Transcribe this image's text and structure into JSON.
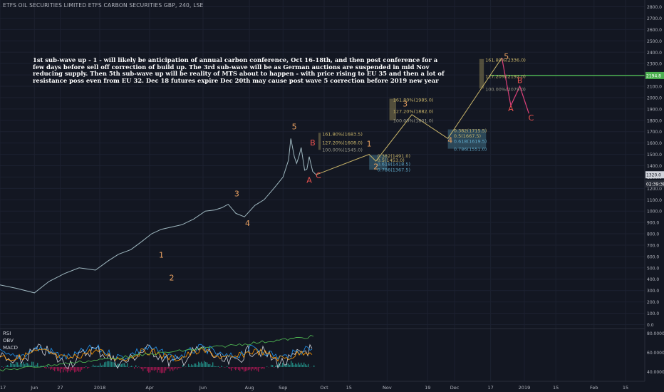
{
  "header": {
    "title": "ETFS OIL SECURITIES LIMITED ETFS CARBON SECURITIES GBP, 240, LSE"
  },
  "annotation": {
    "lines": [
      "1st sub-wave up - 1 -  will likely be anticipation of annual carbon conference, Oct 16-18th, and then post conference for a",
      "few days before sell off correction of build up.  The 3rd sub-wave will be as German auctions are suspended in mid Nov",
      "reducing supply. Then 5th sub-wave up will be reality of MTS about to happen - with price rising to EU 35 and then a lot of",
      "resistance poss even from EU 32. Dec 18 futures expire Dec 20th may cause post wave 5 correction before 2019 new year"
    ]
  },
  "indicators": {
    "rsi": "RSI",
    "obv": "OBV",
    "macd": "MACD"
  },
  "colors": {
    "background": "#131722",
    "price_line": "#9fb8c0",
    "wave_label": "#e8a060",
    "correction_label": "#ef5350",
    "green": "#4caf50",
    "fib_text": "#c9b56a",
    "fib_blue": "#5fa8c8"
  },
  "chart_data": {
    "type": "line",
    "series": [
      {
        "x": [
          "2017-05-01",
          "2017-05-20",
          "2017-06-10",
          "2017-06-27",
          "2017-07-15",
          "2017-08-01",
          "2017-08-20",
          "2017-09-10",
          "2017-10-01",
          "2017-10-25",
          "2017-11-15",
          "2017-12-05",
          "2017-12-25",
          "2018-01-15",
          "2018-02-05",
          "2018-03-01",
          "2018-03-25",
          "2018-04-15",
          "2018-05-01",
          "2018-05-15",
          "2018-06-01",
          "2018-06-20",
          "2018-07-10",
          "2018-07-25",
          "2018-08-10",
          "2018-08-25",
          "2018-09-03",
          "2018-09-05",
          "2018-09-08",
          "2018-09-10",
          "2018-09-12",
          "2018-09-14",
          "2018-09-17",
          "2018-09-19",
          "2018-09-21",
          "2018-09-24",
          "2018-09-27"
        ],
        "values": [
          350,
          320,
          280,
          380,
          450,
          500,
          480,
          560,
          620,
          660,
          730,
          800,
          840,
          860,
          880,
          930,
          1000,
          1010,
          1030,
          1060,
          980,
          950,
          1050,
          1100,
          1200,
          1300,
          1450,
          1640,
          1480,
          1420,
          1480,
          1560,
          1360,
          1370,
          1480,
          1350,
          1320
        ]
      }
    ],
    "wave_labels": [
      {
        "label": "1",
        "x": "2017-12-25",
        "y": 590
      },
      {
        "label": "2",
        "x": "2018-01-15",
        "y": 390
      },
      {
        "label": "3",
        "x": "2018-06-03",
        "y": 1130
      },
      {
        "label": "4",
        "x": "2018-06-27",
        "y": 870
      },
      {
        "label": "5",
        "x": "2018-09-08",
        "y": 1720
      },
      {
        "label": "A",
        "x": "2018-09-21",
        "y": 1250
      },
      {
        "label": "B",
        "x": "2018-09-24",
        "y": 1580
      },
      {
        "label": "C",
        "x": "2018-09-29",
        "y": 1290
      },
      {
        "label": "1",
        "x": "2018-10-24",
        "y": 1570
      },
      {
        "label": "2",
        "x": "2018-10-27",
        "y": 1370
      },
      {
        "label": "3",
        "x": "2018-11-09",
        "y": 1920
      },
      {
        "label": "4",
        "x": "2018-11-29",
        "y": 1600
      },
      {
        "label": "5",
        "x": "2018-12-24",
        "y": 2340
      },
      {
        "label": "A",
        "x": "2018-12-26",
        "y": 1880
      },
      {
        "label": "B",
        "x": "2018-12-30",
        "y": 2130
      },
      {
        "label": "C",
        "x": "2019-01-04",
        "y": 1800
      }
    ],
    "fib_levels": [
      {
        "text": "161.80%(1683.5)",
        "x": "2018-10-01",
        "y": 1683.5,
        "style": "gold"
      },
      {
        "text": "127.20%(1608.0)",
        "x": "2018-10-01",
        "y": 1608,
        "style": "gold"
      },
      {
        "text": "100.00%(1545.0)",
        "x": "2018-10-01",
        "y": 1545,
        "style": "gray"
      },
      {
        "text": "0.382(1491.0)",
        "x": "2018-10-27",
        "y": 1491,
        "style": "gold"
      },
      {
        "text": "0.5(1453.0)",
        "x": "2018-10-27",
        "y": 1453,
        "style": "gold"
      },
      {
        "text": "0.618(1418.5)",
        "x": "2018-10-27",
        "y": 1418.5,
        "style": "blue"
      },
      {
        "text": "0.786(1367.5)",
        "x": "2018-10-27",
        "y": 1367.5,
        "style": "blue"
      },
      {
        "text": "161.80%(1985.0)",
        "x": "2018-11-03",
        "y": 1985,
        "style": "gold"
      },
      {
        "text": "127.20%(1882.0)",
        "x": "2018-11-03",
        "y": 1882,
        "style": "gold"
      },
      {
        "text": "100.00%(1801.0)",
        "x": "2018-11-03",
        "y": 1801,
        "style": "gray"
      },
      {
        "text": "0.382(1715.5)",
        "x": "2018-11-30",
        "y": 1715.5,
        "style": "gold"
      },
      {
        "text": "0.5(1667.5)",
        "x": "2018-11-30",
        "y": 1667.5,
        "style": "gold"
      },
      {
        "text": "0.618(1619.5)",
        "x": "2018-11-30",
        "y": 1619.5,
        "style": "blue"
      },
      {
        "text": "0.786(1551.0)",
        "x": "2018-11-30",
        "y": 1551,
        "style": "blue"
      },
      {
        "text": "161.80%(2336.0)",
        "x": "2018-12-14",
        "y": 2336,
        "style": "gold"
      },
      {
        "text": "127.20%(2192.0)",
        "x": "2018-12-14",
        "y": 2192,
        "style": "gold"
      },
      {
        "text": "100.00%(2079.0)",
        "x": "2018-12-14",
        "y": 2079,
        "style": "gray"
      }
    ],
    "y_ticks": [
      0,
      100,
      200,
      300,
      400,
      500,
      600,
      700,
      800,
      900,
      1000,
      1100,
      1200,
      1300,
      1400,
      1500,
      1600,
      1700,
      1800,
      1900,
      2000,
      2100,
      2200,
      2300,
      2400,
      2500,
      2600,
      2700,
      2800
    ],
    "y_tick_labels": [
      "0.0",
      "100.0",
      "200.0",
      "300.0",
      "400.0",
      "500.0",
      "600.0",
      "700.0",
      "800.0",
      "900.0",
      "1000.0",
      "1100.0",
      "1200.0",
      "1300.0",
      "1400.0",
      "1500.0",
      "1600.0",
      "1700.0",
      "1800.0",
      "1900.0",
      "2000.0",
      "2100.0",
      "2200.0",
      "2300.0",
      "2400.0",
      "2500.0",
      "2600.0",
      "2700.0",
      "2800.0"
    ],
    "ylim": [
      -60,
      2860
    ],
    "x_ticks": [
      {
        "label": "2017",
        "x": "2017-05-01"
      },
      {
        "label": "Jun",
        "x": "2017-06-10"
      },
      {
        "label": "27",
        "x": "2017-07-10"
      },
      {
        "label": "2018",
        "x": "2017-08-25"
      },
      {
        "label": "Apr",
        "x": "2017-12-01"
      },
      {
        "label": "Jun",
        "x": "2018-03-20"
      },
      {
        "label": "Aug",
        "x": "2018-07-01"
      },
      {
        "label": "Sep",
        "x": "2018-08-25"
      },
      {
        "label": "Oct",
        "x": "2018-10-04"
      },
      {
        "label": "15",
        "x": "2018-10-15"
      },
      {
        "label": "Nov",
        "x": "2018-11-01"
      },
      {
        "label": "19",
        "x": "2018-11-19"
      },
      {
        "label": "Dec",
        "x": "2018-12-01"
      },
      {
        "label": "17",
        "x": "2018-12-17"
      },
      {
        "label": "2019",
        "x": "2019-01-01"
      },
      {
        "label": "15",
        "x": "2019-01-15"
      },
      {
        "label": "Feb",
        "x": "2019-02-01"
      },
      {
        "label": "15",
        "x": "2019-02-15"
      }
    ],
    "price_labels": [
      {
        "text": "2194.8",
        "value": 2194.8,
        "style": "green"
      },
      {
        "text": "1320.0",
        "value": 1320,
        "style": "white"
      },
      {
        "text": "02:39:38",
        "value": 1240,
        "style": "dark"
      }
    ],
    "indicator_ticks": [
      "80.0000",
      "60.0000",
      "40.0000"
    ]
  }
}
